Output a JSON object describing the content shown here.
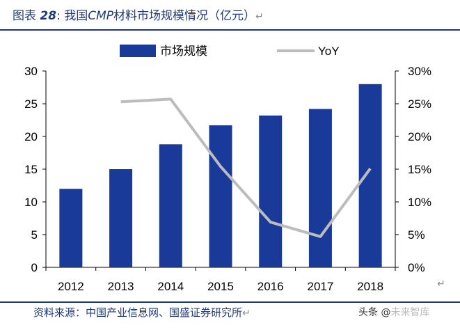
{
  "caption": {
    "prefix": "图表",
    "number": "28",
    "colon": ":",
    "title_start": "我国",
    "title_em": "CMP",
    "title_end": "材料市场规模情况（亿元）",
    "ret": "↵"
  },
  "source": {
    "text": "资料来源：中国产业信息网、国盛证券研究所",
    "ret": "↵"
  },
  "tail_ret": "↵",
  "watermark": {
    "lead": "头条 @",
    "tail": "未来智库"
  },
  "colors": {
    "bar": "#1a3a99",
    "line": "#bcbcbc",
    "axis": "#000000",
    "caption": "#1f3a7a"
  },
  "chart_data": {
    "type": "bar",
    "title": "",
    "xlabel": "",
    "ylabel": "",
    "categories": [
      "2012",
      "2013",
      "2014",
      "2015",
      "2016",
      "2017",
      "2018"
    ],
    "ylim": [
      0,
      30
    ],
    "y2lim": [
      0,
      30
    ],
    "yticks": [
      "0",
      "5",
      "10",
      "15",
      "20",
      "25",
      "30"
    ],
    "y2ticks": [
      "0%",
      "5%",
      "10%",
      "15%",
      "20%",
      "25%",
      "30%"
    ],
    "grid": false,
    "legend_position": "top",
    "series": [
      {
        "name": "市场规模",
        "type": "bar",
        "axis": "left",
        "values": [
          12.0,
          15.0,
          18.8,
          21.7,
          23.2,
          24.2,
          28.0
        ]
      },
      {
        "name": "YoY",
        "type": "line",
        "axis": "right",
        "values": [
          null,
          25.3,
          25.7,
          15.4,
          6.9,
          4.7,
          15.1
        ]
      }
    ]
  }
}
